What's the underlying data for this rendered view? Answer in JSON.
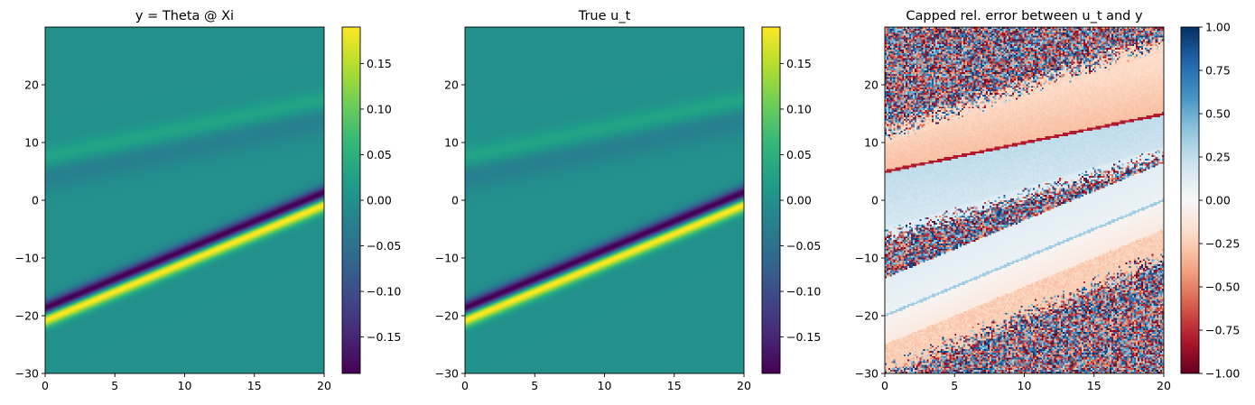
{
  "chart_data": [
    {
      "type": "heatmap",
      "title": "y = Theta @ Xi",
      "xlabel": "",
      "ylabel": "",
      "xlim": [
        0,
        20
      ],
      "ylim": [
        -30,
        30
      ],
      "xticks": [
        "0",
        "5",
        "10",
        "15",
        "20"
      ],
      "yticks": [
        "−30",
        "−20",
        "−10",
        "0",
        "10",
        "20"
      ],
      "colormap": "viridis",
      "colorbar": {
        "range": [
          -0.19,
          0.19
        ],
        "ticks": [
          "0.15",
          "0.10",
          "0.05",
          "0.00",
          "−0.05",
          "−0.10",
          "−0.15"
        ],
        "tick_values": [
          0.15,
          0.1,
          0.05,
          0.0,
          -0.05,
          -0.1,
          -0.15
        ]
      },
      "features": [
        {
          "kind": "positive band",
          "x": [
            0,
            20
          ],
          "y": [
            -18.5,
            1.5
          ],
          "peak": 0.19
        },
        {
          "kind": "negative band",
          "x": [
            0,
            20
          ],
          "y": [
            -21,
            -1
          ],
          "peak": -0.19
        },
        {
          "kind": "weak positive band",
          "x": [
            0,
            20
          ],
          "y": [
            6.5,
            16.5
          ],
          "peak": 0.04
        },
        {
          "kind": "weak negative band",
          "x": [
            0,
            20
          ],
          "y": [
            4,
            14
          ],
          "peak": -0.03
        }
      ]
    },
    {
      "type": "heatmap",
      "title": "True u_t",
      "xlabel": "",
      "ylabel": "",
      "xlim": [
        0,
        20
      ],
      "ylim": [
        -30,
        30
      ],
      "xticks": [
        "0",
        "5",
        "10",
        "15",
        "20"
      ],
      "yticks": [
        "−30",
        "−20",
        "−10",
        "0",
        "10",
        "20"
      ],
      "colormap": "viridis",
      "colorbar": {
        "range": [
          -0.19,
          0.19
        ],
        "ticks": [
          "0.15",
          "0.10",
          "0.05",
          "0.00",
          "−0.05",
          "−0.10",
          "−0.15"
        ],
        "tick_values": [
          0.15,
          0.1,
          0.05,
          0.0,
          -0.05,
          -0.1,
          -0.15
        ]
      },
      "features": [
        {
          "kind": "positive band",
          "x": [
            0,
            20
          ],
          "y": [
            -18.5,
            1.5
          ],
          "peak": 0.19
        },
        {
          "kind": "negative band",
          "x": [
            0,
            20
          ],
          "y": [
            -21,
            -1
          ],
          "peak": -0.19
        },
        {
          "kind": "weak positive band",
          "x": [
            0,
            20
          ],
          "y": [
            6.5,
            16.5
          ],
          "peak": 0.04
        },
        {
          "kind": "weak negative band",
          "x": [
            0,
            20
          ],
          "y": [
            4,
            14
          ],
          "peak": -0.03
        }
      ]
    },
    {
      "type": "heatmap",
      "title": "Capped rel. error between u_t and y",
      "xlabel": "",
      "ylabel": "",
      "xlim": [
        0,
        20
      ],
      "ylim": [
        -30,
        30
      ],
      "xticks": [
        "0",
        "5",
        "10",
        "15",
        "20"
      ],
      "yticks": [
        "−30",
        "−20",
        "−10",
        "0",
        "10",
        "20"
      ],
      "colormap": "RdBu",
      "colorbar": {
        "range": [
          -1,
          1
        ],
        "ticks": [
          "1.00",
          "0.75",
          "0.50",
          "0.25",
          "0.00",
          "−0.25",
          "−0.50",
          "−0.75",
          "−1.00"
        ],
        "tick_values": [
          1,
          0.75,
          0.5,
          0.25,
          0,
          -0.25,
          -0.5,
          -0.75,
          -1
        ]
      },
      "features": [
        {
          "kind": "negative error region",
          "x": [
            0,
            20
          ],
          "y_lower": [
            5,
            15
          ],
          "y_upper": [
            10,
            20
          ],
          "value": -0.3
        },
        {
          "kind": "positive error region",
          "x": [
            0,
            20
          ],
          "y_lower": [
            -5,
            5
          ],
          "y_upper": [
            5,
            15
          ],
          "value": 0.2
        },
        {
          "kind": "near-zero region",
          "x": [
            0,
            20
          ],
          "y_lower": [
            -25,
            -5
          ],
          "y_upper": [
            -5,
            5
          ],
          "value": 0.0
        },
        {
          "kind": "negative error region",
          "x": [
            0,
            20
          ],
          "y_lower": [
            -27,
            -7
          ],
          "y_upper": [
            -22,
            -2
          ],
          "value": -0.3
        },
        {
          "kind": "noise region",
          "value": "random ±1"
        }
      ]
    }
  ]
}
